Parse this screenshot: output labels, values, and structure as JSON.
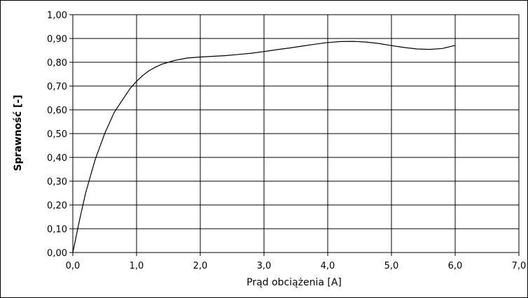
{
  "chart_data": {
    "type": "line",
    "xlabel": "Prąd obciążenia [A]",
    "ylabel": "Sprawność [-]",
    "xlim": [
      0,
      7
    ],
    "ylim": [
      0,
      1
    ],
    "grid": true,
    "x_ticks": [
      "0,0",
      "1,0",
      "2,0",
      "3,0",
      "4,0",
      "5,0",
      "6,0",
      "7,0"
    ],
    "y_ticks": [
      "0,00",
      "0,10",
      "0,20",
      "0,30",
      "0,40",
      "0,50",
      "0,60",
      "0,70",
      "0,80",
      "0,90",
      "1,00"
    ],
    "series": [
      {
        "x": [
          0.0,
          0.1,
          0.2,
          0.35,
          0.5,
          0.65,
          0.8,
          0.9,
          1.0,
          1.1,
          1.2,
          1.3,
          1.4,
          1.5,
          1.6,
          1.8,
          2.0,
          2.2,
          2.4,
          2.6,
          2.8,
          3.0,
          3.2,
          3.4,
          3.6,
          3.8,
          4.0,
          4.2,
          4.4,
          4.6,
          4.8,
          5.0,
          5.2,
          5.4,
          5.6,
          5.8,
          6.0
        ],
        "y": [
          0.0,
          0.13,
          0.25,
          0.39,
          0.5,
          0.59,
          0.65,
          0.69,
          0.72,
          0.745,
          0.765,
          0.78,
          0.792,
          0.8,
          0.808,
          0.818,
          0.822,
          0.825,
          0.828,
          0.833,
          0.838,
          0.845,
          0.853,
          0.86,
          0.868,
          0.876,
          0.883,
          0.887,
          0.888,
          0.885,
          0.879,
          0.87,
          0.862,
          0.856,
          0.854,
          0.858,
          0.871
        ],
        "color": "#000000"
      }
    ]
  }
}
